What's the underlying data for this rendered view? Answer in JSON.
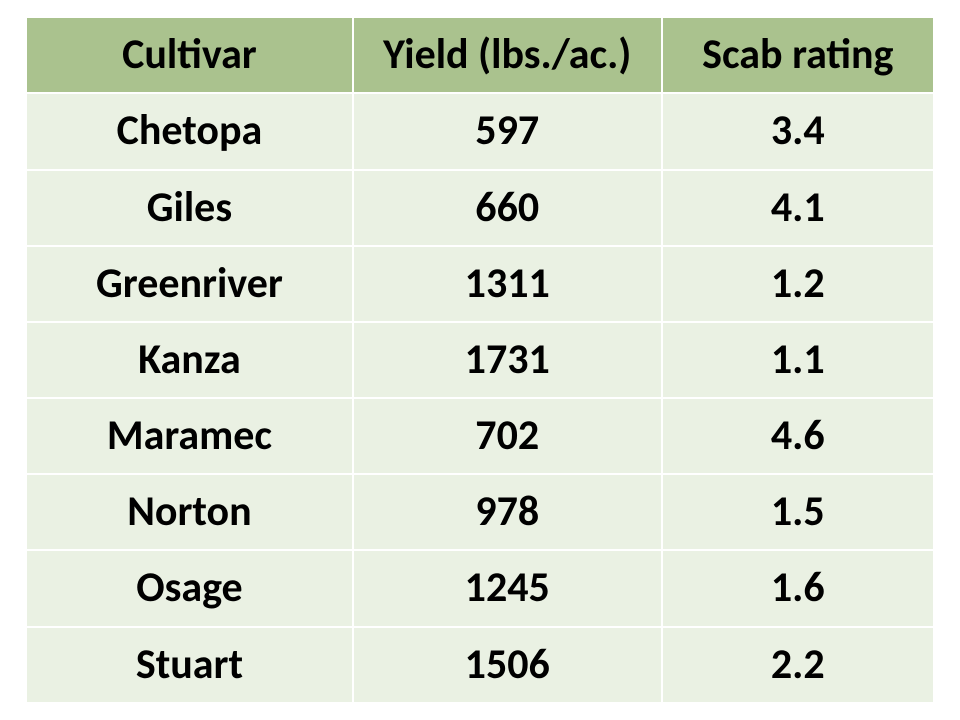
{
  "table": {
    "type": "table",
    "header_background_color": "#aac28e",
    "row_background_color": "#eaf1e3",
    "border_color": "#ffffff",
    "border_width": 2,
    "font_weight": "bold",
    "font_size_pt": 32,
    "text_color": "#000000",
    "text_align": "center",
    "columns": [
      {
        "label": "Cultivar",
        "width_pct": 36
      },
      {
        "label": "Yield (lbs./ac.)",
        "width_pct": 34
      },
      {
        "label": "Scab rating",
        "width_pct": 30
      }
    ],
    "rows": [
      {
        "cultivar": "Chetopa",
        "yield": "597",
        "scab": "3.4"
      },
      {
        "cultivar": "Giles",
        "yield": "660",
        "scab": "4.1"
      },
      {
        "cultivar": "Greenriver",
        "yield": "1311",
        "scab": "1.2"
      },
      {
        "cultivar": "Kanza",
        "yield": "1731",
        "scab": "1.1"
      },
      {
        "cultivar": "Maramec",
        "yield": "702",
        "scab": "4.6"
      },
      {
        "cultivar": "Norton",
        "yield": "978",
        "scab": "1.5"
      },
      {
        "cultivar": "Osage",
        "yield": "1245",
        "scab": "1.6"
      },
      {
        "cultivar": "Stuart",
        "yield": "1506",
        "scab": "2.2"
      }
    ]
  }
}
